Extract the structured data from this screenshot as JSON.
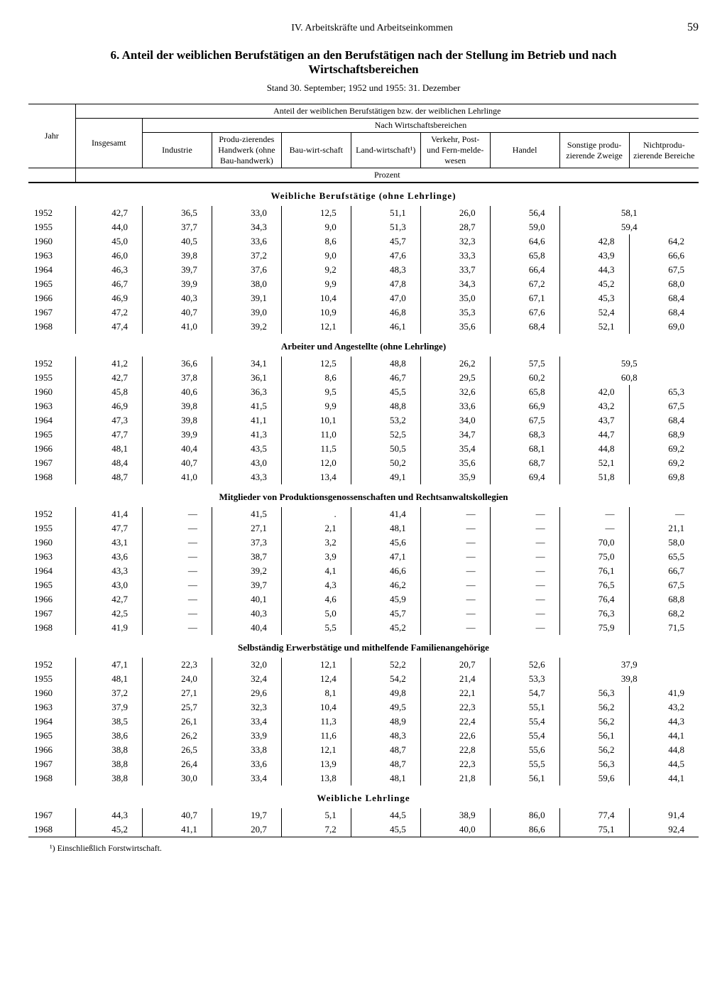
{
  "chapter": "IV. Arbeitskräfte und Arbeitseinkommen",
  "page_number": "59",
  "title": "6. Anteil der weiblichen Berufstätigen an den Berufstätigen nach der Stellung im Betrieb und nach Wirtschaftsbereichen",
  "subtitle": "Stand 30. September; 1952 und 1955: 31. Dezember",
  "spanner": "Anteil der weiblichen Berufstätigen bzw. der weiblichen Lehrlinge",
  "sub_spanner": "Nach Wirtschaftsbereichen",
  "unit_label": "Prozent",
  "footnote": "¹) Einschließlich Forstwirtschaft.",
  "columns": {
    "jahr": "Jahr",
    "insgesamt": "Insgesamt",
    "industrie": "Industrie",
    "handwerk": "Produ-zierendes Handwerk (ohne Bau-handwerk)",
    "bau": "Bau-wirt-schaft",
    "land": "Land-wirtschaft¹)",
    "verkehr": "Verkehr, Post- und Fern-melde-wesen",
    "handel": "Handel",
    "sonstige": "Sonstige produ-zierende Zweige",
    "nichtprod": "Nichtprodu-zierende Bereiche"
  },
  "sections": [
    {
      "title": "Weibliche Berufstätige (ohne Lehrlinge)",
      "spaced": true,
      "rows": [
        {
          "jahr": "1952",
          "ins": "42,7",
          "c": [
            "36,5",
            "33,0",
            "12,5",
            "51,1",
            "26,0",
            "56,4"
          ],
          "merged": "58,1"
        },
        {
          "jahr": "1955",
          "ins": "44,0",
          "c": [
            "37,7",
            "34,3",
            "9,0",
            "51,3",
            "28,7",
            "59,0"
          ],
          "merged": "59,4"
        },
        {
          "jahr": "1960",
          "ins": "45,0",
          "c": [
            "40,5",
            "33,6",
            "8,6",
            "45,7",
            "32,3",
            "64,6",
            "42,8",
            "64,2"
          ]
        },
        {
          "jahr": "1963",
          "ins": "46,0",
          "c": [
            "39,8",
            "37,2",
            "9,0",
            "47,6",
            "33,3",
            "65,8",
            "43,9",
            "66,6"
          ]
        },
        {
          "jahr": "1964",
          "ins": "46,3",
          "c": [
            "39,7",
            "37,6",
            "9,2",
            "48,3",
            "33,7",
            "66,4",
            "44,3",
            "67,5"
          ]
        },
        {
          "jahr": "1965",
          "ins": "46,7",
          "c": [
            "39,9",
            "38,0",
            "9,9",
            "47,8",
            "34,3",
            "67,2",
            "45,2",
            "68,0"
          ]
        },
        {
          "jahr": "1966",
          "ins": "46,9",
          "c": [
            "40,3",
            "39,1",
            "10,4",
            "47,0",
            "35,0",
            "67,1",
            "45,3",
            "68,4"
          ]
        },
        {
          "jahr": "1967",
          "ins": "47,2",
          "c": [
            "40,7",
            "39,0",
            "10,9",
            "46,8",
            "35,3",
            "67,6",
            "52,4",
            "68,4"
          ]
        },
        {
          "jahr": "1968",
          "ins": "47,4",
          "c": [
            "41,0",
            "39,2",
            "12,1",
            "46,1",
            "35,6",
            "68,4",
            "52,1",
            "69,0"
          ]
        }
      ]
    },
    {
      "title": "Arbeiter und Angestellte (ohne Lehrlinge)",
      "rows": [
        {
          "jahr": "1952",
          "ins": "41,2",
          "c": [
            "36,6",
            "34,1",
            "12,5",
            "48,8",
            "26,2",
            "57,5"
          ],
          "merged": "59,5"
        },
        {
          "jahr": "1955",
          "ins": "42,7",
          "c": [
            "37,8",
            "36,1",
            "8,6",
            "46,7",
            "29,5",
            "60,2"
          ],
          "merged": "60,8"
        },
        {
          "jahr": "1960",
          "ins": "45,8",
          "c": [
            "40,6",
            "36,3",
            "9,5",
            "45,5",
            "32,6",
            "65,8",
            "42,0",
            "65,3"
          ]
        },
        {
          "jahr": "1963",
          "ins": "46,9",
          "c": [
            "39,8",
            "41,5",
            "9,9",
            "48,8",
            "33,6",
            "66,9",
            "43,2",
            "67,5"
          ]
        },
        {
          "jahr": "1964",
          "ins": "47,3",
          "c": [
            "39,8",
            "41,1",
            "10,1",
            "53,2",
            "34,0",
            "67,5",
            "43,7",
            "68,4"
          ]
        },
        {
          "jahr": "1965",
          "ins": "47,7",
          "c": [
            "39,9",
            "41,3",
            "11,0",
            "52,5",
            "34,7",
            "68,3",
            "44,7",
            "68,9"
          ]
        },
        {
          "jahr": "1966",
          "ins": "48,1",
          "c": [
            "40,4",
            "43,5",
            "11,5",
            "50,5",
            "35,4",
            "68,1",
            "44,8",
            "69,2"
          ]
        },
        {
          "jahr": "1967",
          "ins": "48,4",
          "c": [
            "40,7",
            "43,0",
            "12,0",
            "50,2",
            "35,6",
            "68,7",
            "52,1",
            "69,2"
          ]
        },
        {
          "jahr": "1968",
          "ins": "48,7",
          "c": [
            "41,0",
            "43,3",
            "13,4",
            "49,1",
            "35,9",
            "69,4",
            "51,8",
            "69,8"
          ]
        }
      ]
    },
    {
      "title": "Mitglieder von Produktionsgenossenschaften und Rechtsanwaltskollegien",
      "rows": [
        {
          "jahr": "1952",
          "ins": "41,4",
          "c": [
            "—",
            "41,5",
            ".",
            "41,4",
            "—",
            "—",
            "—",
            "—"
          ]
        },
        {
          "jahr": "1955",
          "ins": "47,7",
          "c": [
            "—",
            "27,1",
            "2,1",
            "48,1",
            "—",
            "—",
            "—",
            "21,1"
          ]
        },
        {
          "jahr": "1960",
          "ins": "43,1",
          "c": [
            "—",
            "37,3",
            "3,2",
            "45,6",
            "—",
            "—",
            "70,0",
            "58,0"
          ]
        },
        {
          "jahr": "1963",
          "ins": "43,6",
          "c": [
            "—",
            "38,7",
            "3,9",
            "47,1",
            "—",
            "—",
            "75,0",
            "65,5"
          ]
        },
        {
          "jahr": "1964",
          "ins": "43,3",
          "c": [
            "—",
            "39,2",
            "4,1",
            "46,6",
            "—",
            "—",
            "76,1",
            "66,7"
          ]
        },
        {
          "jahr": "1965",
          "ins": "43,0",
          "c": [
            "—",
            "39,7",
            "4,3",
            "46,2",
            "—",
            "—",
            "76,5",
            "67,5"
          ]
        },
        {
          "jahr": "1966",
          "ins": "42,7",
          "c": [
            "—",
            "40,1",
            "4,6",
            "45,9",
            "—",
            "—",
            "76,4",
            "68,8"
          ]
        },
        {
          "jahr": "1967",
          "ins": "42,5",
          "c": [
            "—",
            "40,3",
            "5,0",
            "45,7",
            "—",
            "—",
            "76,3",
            "68,2"
          ]
        },
        {
          "jahr": "1968",
          "ins": "41,9",
          "c": [
            "—",
            "40,4",
            "5,5",
            "45,2",
            "—",
            "—",
            "75,9",
            "71,5"
          ]
        }
      ]
    },
    {
      "title": "Selbständig Erwerbstätige und mithelfende Familienangehörige",
      "rows": [
        {
          "jahr": "1952",
          "ins": "47,1",
          "c": [
            "22,3",
            "32,0",
            "12,1",
            "52,2",
            "20,7",
            "52,6"
          ],
          "merged": "37,9"
        },
        {
          "jahr": "1955",
          "ins": "48,1",
          "c": [
            "24,0",
            "32,4",
            "12,4",
            "54,2",
            "21,4",
            "53,3"
          ],
          "merged": "39,8"
        },
        {
          "jahr": "1960",
          "ins": "37,2",
          "c": [
            "27,1",
            "29,6",
            "8,1",
            "49,8",
            "22,1",
            "54,7",
            "56,3",
            "41,9"
          ]
        },
        {
          "jahr": "1963",
          "ins": "37,9",
          "c": [
            "25,7",
            "32,3",
            "10,4",
            "49,5",
            "22,3",
            "55,1",
            "56,2",
            "43,2"
          ]
        },
        {
          "jahr": "1964",
          "ins": "38,5",
          "c": [
            "26,1",
            "33,4",
            "11,3",
            "48,9",
            "22,4",
            "55,4",
            "56,2",
            "44,3"
          ]
        },
        {
          "jahr": "1965",
          "ins": "38,6",
          "c": [
            "26,2",
            "33,9",
            "11,6",
            "48,3",
            "22,6",
            "55,4",
            "56,1",
            "44,1"
          ]
        },
        {
          "jahr": "1966",
          "ins": "38,8",
          "c": [
            "26,5",
            "33,8",
            "12,1",
            "48,7",
            "22,8",
            "55,6",
            "56,2",
            "44,8"
          ]
        },
        {
          "jahr": "1967",
          "ins": "38,8",
          "c": [
            "26,4",
            "33,6",
            "13,9",
            "48,7",
            "22,3",
            "55,5",
            "56,3",
            "44,5"
          ]
        },
        {
          "jahr": "1968",
          "ins": "38,8",
          "c": [
            "30,0",
            "33,4",
            "13,8",
            "48,1",
            "21,8",
            "56,1",
            "59,6",
            "44,1"
          ]
        }
      ]
    },
    {
      "title": "Weibliche Lehrlinge",
      "spaced": true,
      "rows": [
        {
          "jahr": "1967",
          "ins": "44,3",
          "c": [
            "40,7",
            "19,7",
            "5,1",
            "44,5",
            "38,9",
            "86,0",
            "77,4",
            "91,4"
          ]
        },
        {
          "jahr": "1968",
          "ins": "45,2",
          "c": [
            "41,1",
            "20,7",
            "7,2",
            "45,5",
            "40,0",
            "86,6",
            "75,1",
            "92,4"
          ]
        }
      ]
    }
  ]
}
